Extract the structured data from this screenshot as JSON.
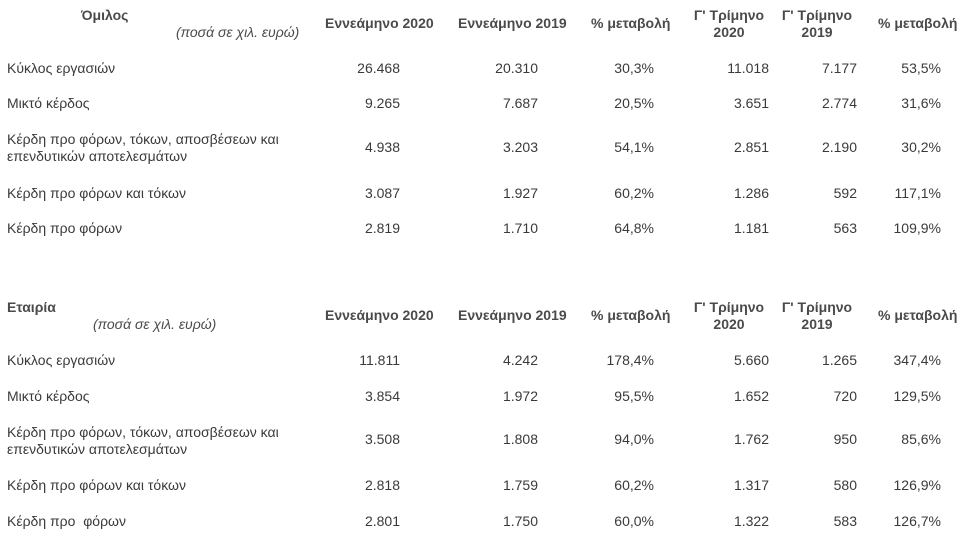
{
  "columns": {
    "c1": "Εννεάμηνο 2020",
    "c2": "Εννεάμηνο 2019",
    "c3": "% μεταβολή",
    "c4a": "Γ' Τρίμηνο",
    "c4b": "2020",
    "c5a": "Γ' Τρίμηνο",
    "c5b": "2019",
    "c6": "% μεταβολή"
  },
  "group": {
    "title": "Όμιλος",
    "subtitle": "(ποσά σε χιλ. ευρώ)",
    "rows": [
      {
        "label": "Κύκλος εργασιών",
        "v": [
          "26.468",
          "20.310",
          "30,3%",
          "11.018",
          "7.177",
          "53,5%"
        ]
      },
      {
        "label": "Μικτό κέρδος",
        "v": [
          "9.265",
          "7.687",
          "20,5%",
          "3.651",
          "2.774",
          "31,6%"
        ]
      },
      {
        "label": "Κέρδη προ φόρων, τόκων, αποσβέσεων και επενδυτικών αποτελεσμάτων",
        "v": [
          "4.938",
          "3.203",
          "54,1%",
          "2.851",
          "2.190",
          "30,2%"
        ]
      },
      {
        "label": "Κέρδη προ φόρων και τόκων",
        "v": [
          "3.087",
          "1.927",
          "60,2%",
          "1.286",
          "592",
          "117,1%"
        ]
      },
      {
        "label": "Κέρδη προ φόρων",
        "v": [
          "2.819",
          "1.710",
          "64,8%",
          "1.181",
          "563",
          "109,9%"
        ]
      }
    ]
  },
  "company": {
    "title": "Εταιρία",
    "subtitle": "(ποσά σε χιλ. ευρώ)",
    "rows": [
      {
        "label": "Κύκλος εργασιών",
        "v": [
          "11.811",
          "4.242",
          "178,4%",
          "5.660",
          "1.265",
          "347,4%"
        ]
      },
      {
        "label": "Μικτό κέρδος",
        "v": [
          "3.854",
          "1.972",
          "95,5%",
          "1.652",
          "720",
          "129,5%"
        ]
      },
      {
        "label": "Κέρδη προ φόρων, τόκων, αποσβέσεων και επενδυτικών αποτελεσμάτων",
        "v": [
          "3.508",
          "1.808",
          "94,0%",
          "1.762",
          "950",
          "85,6%"
        ]
      },
      {
        "label": "Κέρδη προ φόρων και τόκων",
        "v": [
          "2.818",
          "1.759",
          "60,2%",
          "1.317",
          "580",
          "126,9%"
        ]
      },
      {
        "label": "Κέρδη προ  φόρων",
        "v": [
          "2.801",
          "1.750",
          "60,0%",
          "1.322",
          "583",
          "126,7%"
        ]
      }
    ]
  }
}
